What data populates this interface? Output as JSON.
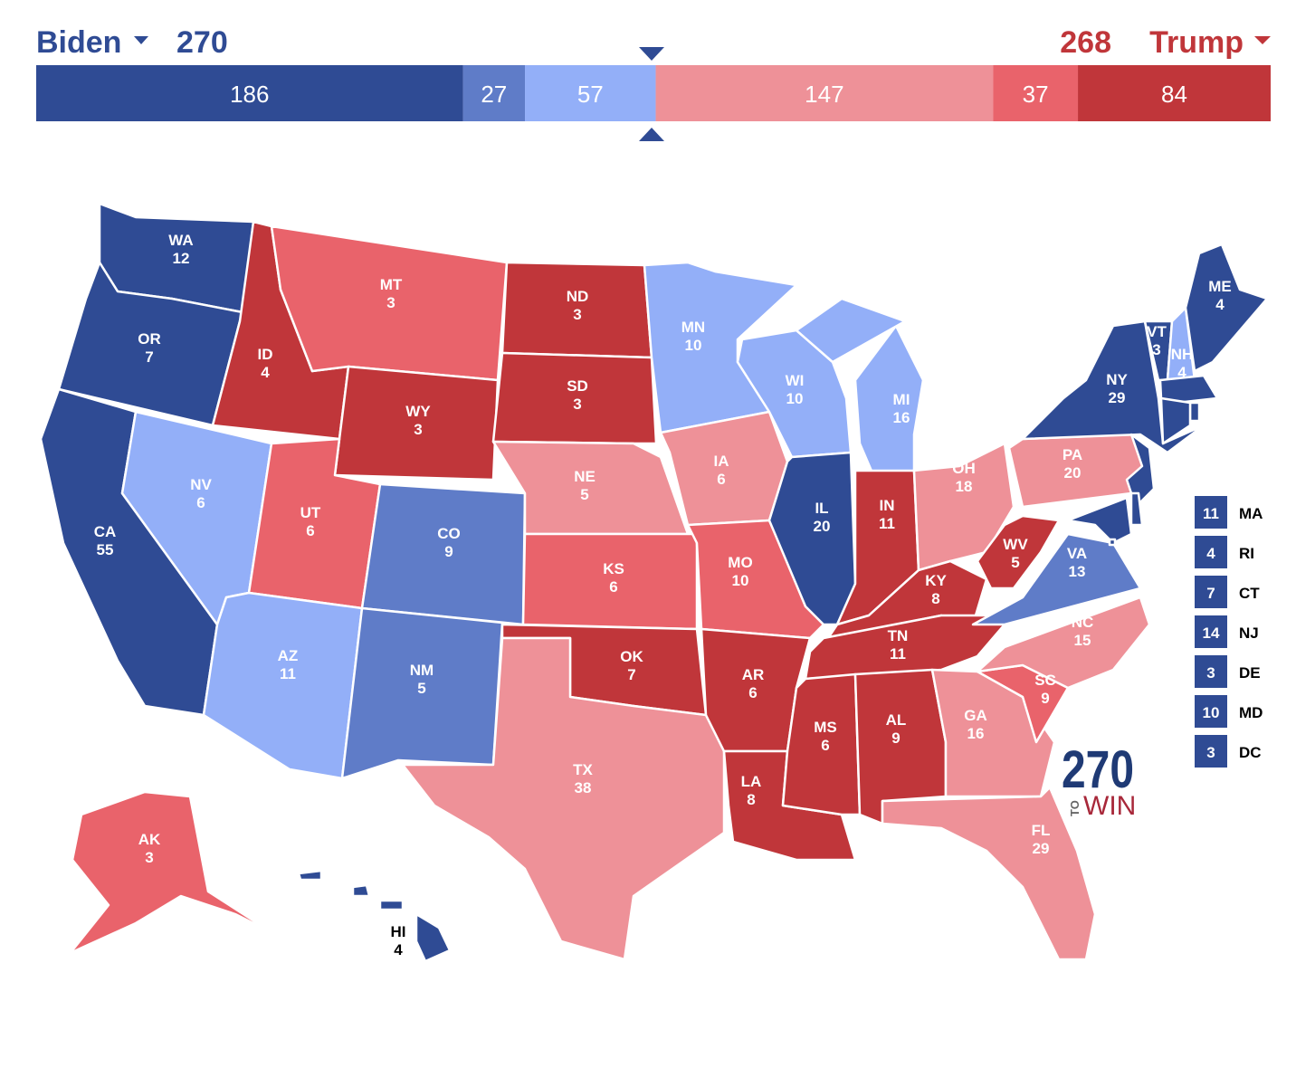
{
  "header": {
    "left": {
      "name": "Biden",
      "total": 270,
      "color": "#2f4b94"
    },
    "right": {
      "name": "Trump",
      "total": 268,
      "color": "#c0363a"
    }
  },
  "bar": [
    {
      "value": 186,
      "color": "#2f4b94"
    },
    {
      "value": 27,
      "color": "#5f7cc8"
    },
    {
      "value": 57,
      "color": "#93aff8"
    },
    {
      "value": 147,
      "color": "#ee9198"
    },
    {
      "value": 37,
      "color": "#e9636b"
    },
    {
      "value": 84,
      "color": "#c0363a"
    }
  ],
  "states": [
    {
      "abbr": "WA",
      "votes": 12,
      "color": "#2f4b94"
    },
    {
      "abbr": "OR",
      "votes": 7,
      "color": "#2f4b94"
    },
    {
      "abbr": "CA",
      "votes": 55,
      "color": "#2f4b94"
    },
    {
      "abbr": "NV",
      "votes": 6,
      "color": "#93aff8"
    },
    {
      "abbr": "ID",
      "votes": 4,
      "color": "#c0363a"
    },
    {
      "abbr": "MT",
      "votes": 3,
      "color": "#e9636b"
    },
    {
      "abbr": "WY",
      "votes": 3,
      "color": "#c0363a"
    },
    {
      "abbr": "UT",
      "votes": 6,
      "color": "#e9636b"
    },
    {
      "abbr": "CO",
      "votes": 9,
      "color": "#5f7cc8"
    },
    {
      "abbr": "AZ",
      "votes": 11,
      "color": "#93aff8"
    },
    {
      "abbr": "NM",
      "votes": 5,
      "color": "#5f7cc8"
    },
    {
      "abbr": "ND",
      "votes": 3,
      "color": "#c0363a"
    },
    {
      "abbr": "SD",
      "votes": 3,
      "color": "#c0363a"
    },
    {
      "abbr": "NE",
      "votes": 5,
      "color": "#ee9198"
    },
    {
      "abbr": "KS",
      "votes": 6,
      "color": "#e9636b"
    },
    {
      "abbr": "OK",
      "votes": 7,
      "color": "#c0363a"
    },
    {
      "abbr": "TX",
      "votes": 38,
      "color": "#ee9198"
    },
    {
      "abbr": "MN",
      "votes": 10,
      "color": "#93aff8"
    },
    {
      "abbr": "IA",
      "votes": 6,
      "color": "#ee9198"
    },
    {
      "abbr": "MO",
      "votes": 10,
      "color": "#e9636b"
    },
    {
      "abbr": "AR",
      "votes": 6,
      "color": "#c0363a"
    },
    {
      "abbr": "LA",
      "votes": 8,
      "color": "#c0363a"
    },
    {
      "abbr": "WI",
      "votes": 10,
      "color": "#93aff8"
    },
    {
      "abbr": "IL",
      "votes": 20,
      "color": "#2f4b94"
    },
    {
      "abbr": "MI",
      "votes": 16,
      "color": "#93aff8"
    },
    {
      "abbr": "IN",
      "votes": 11,
      "color": "#c0363a"
    },
    {
      "abbr": "OH",
      "votes": 18,
      "color": "#ee9198"
    },
    {
      "abbr": "KY",
      "votes": 8,
      "color": "#c0363a"
    },
    {
      "abbr": "TN",
      "votes": 11,
      "color": "#c0363a"
    },
    {
      "abbr": "MS",
      "votes": 6,
      "color": "#c0363a"
    },
    {
      "abbr": "AL",
      "votes": 9,
      "color": "#c0363a"
    },
    {
      "abbr": "GA",
      "votes": 16,
      "color": "#ee9198"
    },
    {
      "abbr": "FL",
      "votes": 29,
      "color": "#ee9198"
    },
    {
      "abbr": "SC",
      "votes": 9,
      "color": "#e9636b"
    },
    {
      "abbr": "NC",
      "votes": 15,
      "color": "#ee9198"
    },
    {
      "abbr": "VA",
      "votes": 13,
      "color": "#5f7cc8"
    },
    {
      "abbr": "WV",
      "votes": 5,
      "color": "#c0363a"
    },
    {
      "abbr": "PA",
      "votes": 20,
      "color": "#ee9198"
    },
    {
      "abbr": "NY",
      "votes": 29,
      "color": "#2f4b94"
    },
    {
      "abbr": "VT",
      "votes": 3,
      "color": "#2f4b94"
    },
    {
      "abbr": "NH",
      "votes": 4,
      "color": "#93aff8"
    },
    {
      "abbr": "ME",
      "votes": 4,
      "color": "#2f4b94"
    },
    {
      "abbr": "AK",
      "votes": 3,
      "color": "#e9636b"
    },
    {
      "abbr": "HI",
      "votes": 4,
      "color": "#2f4b94",
      "label_color": "#000000"
    }
  ],
  "small_states": [
    {
      "votes": 11,
      "abbr": "MA",
      "color": "#2f4b94"
    },
    {
      "votes": 4,
      "abbr": "RI",
      "color": "#2f4b94"
    },
    {
      "votes": 7,
      "abbr": "CT",
      "color": "#2f4b94"
    },
    {
      "votes": 14,
      "abbr": "NJ",
      "color": "#2f4b94"
    },
    {
      "votes": 3,
      "abbr": "DE",
      "color": "#2f4b94"
    },
    {
      "votes": 10,
      "abbr": "MD",
      "color": "#2f4b94"
    },
    {
      "votes": 3,
      "abbr": "DC",
      "color": "#2f4b94"
    }
  ],
  "logo": {
    "number": "270",
    "to": "TO",
    "win": "WIN"
  }
}
